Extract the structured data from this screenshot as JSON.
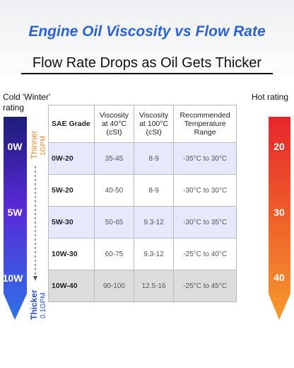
{
  "header": {
    "title": "Engine Oil Viscosity vs Flow Rate",
    "subtitle": "Flow Rate Drops as Oil Gets Thicker"
  },
  "left": {
    "label": "Cold 'Winter' rating",
    "grades": [
      "0W",
      "5W",
      "10W"
    ]
  },
  "right": {
    "label": "Hot rating",
    "grades": [
      "20",
      "30",
      "40"
    ]
  },
  "flow": {
    "thin": "Thinner",
    "thin_rate": "1GPM",
    "thick": "Thicker",
    "thick_rate": "0.1GPM"
  },
  "table": {
    "header": [
      "SAE Grade",
      "Viscosity at 40°C (cSt)",
      "Viscosity at 100°C (cSt)",
      "Recommended Temperature Range"
    ],
    "rows": [
      [
        "0W-20",
        "35-45",
        "8-9",
        "-35°C to 30°C"
      ],
      [
        "5W-20",
        "40-50",
        "8-9",
        "-30°C to 30°C"
      ],
      [
        "5W-30",
        "50-65",
        "9.3-12",
        "-30°C to 35°C"
      ],
      [
        "10W-30",
        "60-75",
        "9.3-12",
        "-25°C to 40°C"
      ],
      [
        "10W-40",
        "90-100",
        "12.5-16",
        "-25°C to 45°C"
      ]
    ]
  }
}
